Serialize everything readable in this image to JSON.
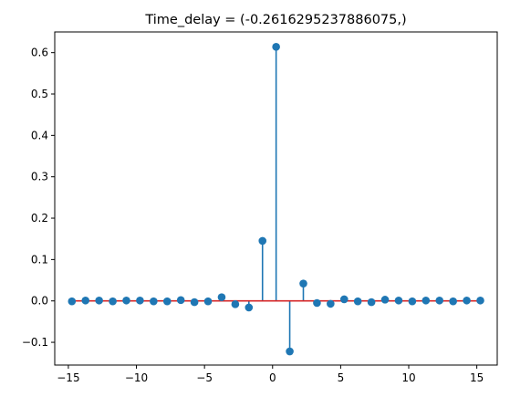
{
  "chart_data": {
    "type": "stem",
    "title": "Time_delay = (-0.2616295237886075,)",
    "xlabel": "",
    "ylabel": "",
    "xlim": [
      -16.0,
      16.5
    ],
    "ylim": [
      -0.155,
      0.65
    ],
    "xticks": [
      -15,
      -10,
      -5,
      0,
      5,
      10,
      15
    ],
    "xtick_labels": [
      "−15",
      "−10",
      "−5",
      "0",
      "5",
      "10",
      "15"
    ],
    "yticks": [
      -0.1,
      0.0,
      0.1,
      0.2,
      0.3,
      0.4,
      0.5,
      0.6
    ],
    "ytick_labels": [
      "−0.1",
      "0.0",
      "0.1",
      "0.2",
      "0.3",
      "0.4",
      "0.5",
      "0.6"
    ],
    "grid": false,
    "baseline": 0,
    "colors": {
      "stem": "#1f77b4",
      "marker": "#1f77b4",
      "baseline": "#d62728"
    },
    "x": [
      -14.74,
      -13.74,
      -12.74,
      -11.74,
      -10.74,
      -9.74,
      -8.74,
      -7.74,
      -6.74,
      -5.74,
      -4.74,
      -3.74,
      -2.74,
      -1.74,
      -0.74,
      0.26,
      1.26,
      2.26,
      3.26,
      4.26,
      5.26,
      6.26,
      7.26,
      8.26,
      9.26,
      10.26,
      11.26,
      12.26,
      13.26,
      14.26,
      15.26
    ],
    "y": [
      -0.001,
      0.001,
      0.001,
      -0.001,
      0.001,
      0.001,
      -0.001,
      -0.001,
      0.002,
      -0.003,
      -0.001,
      0.009,
      -0.008,
      -0.016,
      0.145,
      0.614,
      -0.122,
      0.042,
      -0.005,
      -0.007,
      0.004,
      -0.001,
      -0.003,
      0.003,
      0.001,
      -0.001,
      0.001,
      0.001,
      -0.001,
      0.001,
      0.001
    ]
  }
}
